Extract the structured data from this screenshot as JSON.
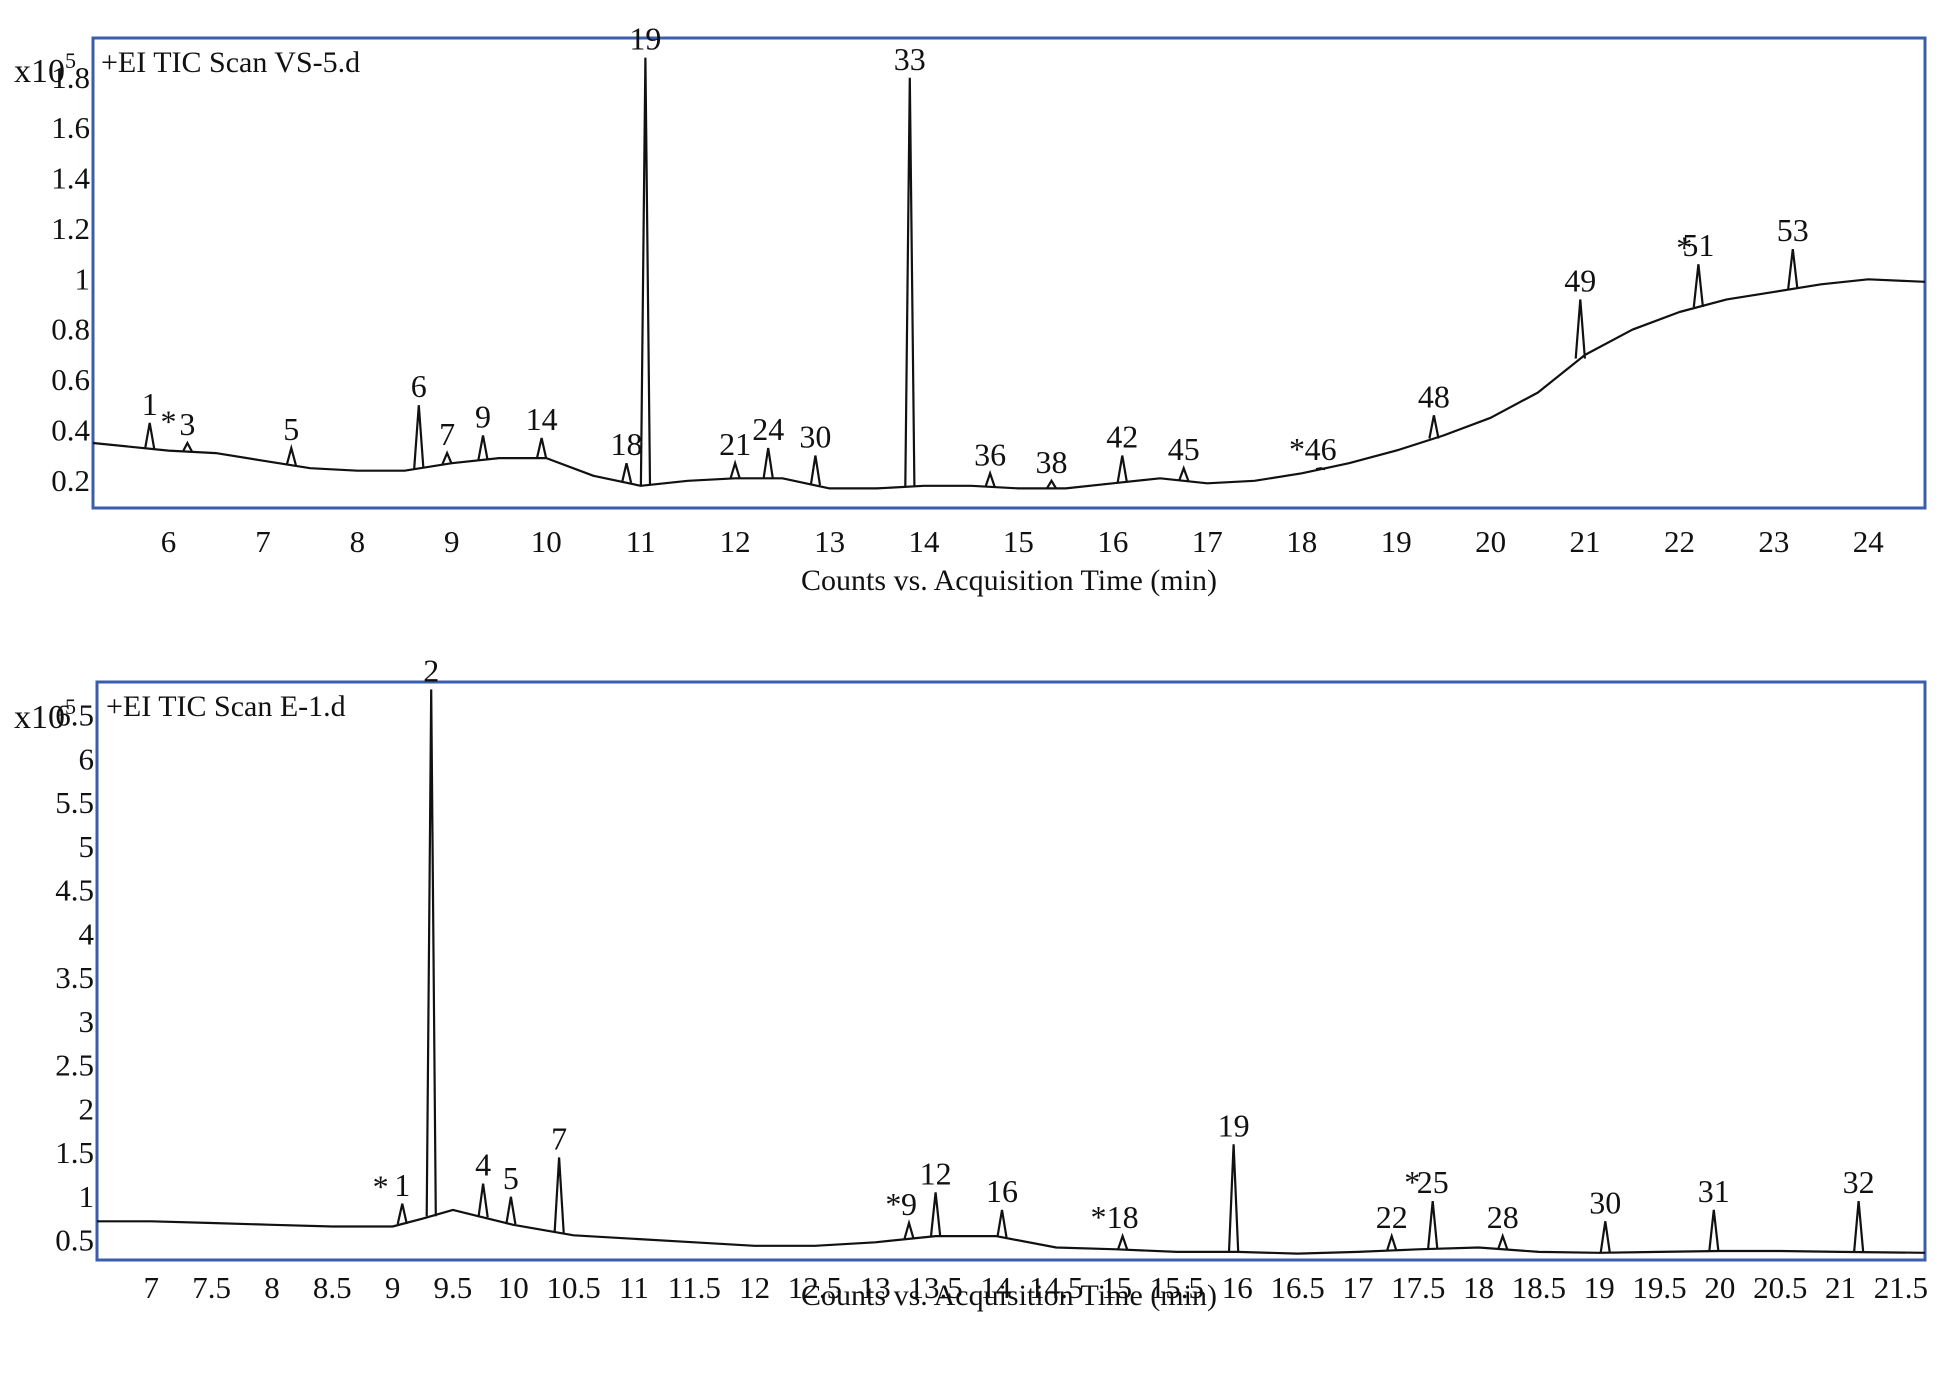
{
  "chart_data": [
    {
      "type": "line",
      "title": "+EI TIC Scan VS-5.d",
      "xlabel": "Counts vs. Acquisition Time (min)",
      "ylabel": "",
      "y_multiplier": "x10",
      "y_multiplier_exp": "5",
      "xlim": [
        5.2,
        24.6
      ],
      "ylim": [
        0.1,
        1.95
      ],
      "x_ticks": [
        6,
        7,
        8,
        9,
        10,
        11,
        12,
        13,
        14,
        15,
        16,
        17,
        18,
        19,
        20,
        21,
        22,
        23,
        24
      ],
      "y_ticks": [
        0.2,
        0.4,
        0.6,
        0.8,
        1,
        1.2,
        1.4,
        1.6,
        1.8
      ],
      "grid": false,
      "baseline": [
        [
          5.2,
          0.35
        ],
        [
          6,
          0.32
        ],
        [
          6.5,
          0.31
        ],
        [
          7,
          0.28
        ],
        [
          7.5,
          0.25
        ],
        [
          8,
          0.24
        ],
        [
          8.5,
          0.24
        ],
        [
          9,
          0.27
        ],
        [
          9.5,
          0.29
        ],
        [
          10,
          0.29
        ],
        [
          10.5,
          0.22
        ],
        [
          11,
          0.18
        ],
        [
          11.5,
          0.2
        ],
        [
          12,
          0.21
        ],
        [
          12.5,
          0.21
        ],
        [
          13,
          0.17
        ],
        [
          13.5,
          0.17
        ],
        [
          14,
          0.18
        ],
        [
          14.5,
          0.18
        ],
        [
          15,
          0.17
        ],
        [
          15.5,
          0.17
        ],
        [
          16,
          0.19
        ],
        [
          16.5,
          0.21
        ],
        [
          17,
          0.19
        ],
        [
          17.5,
          0.2
        ],
        [
          18,
          0.23
        ],
        [
          18.5,
          0.27
        ],
        [
          19,
          0.32
        ],
        [
          19.5,
          0.38
        ],
        [
          20,
          0.45
        ],
        [
          20.5,
          0.55
        ],
        [
          21,
          0.7
        ],
        [
          21.5,
          0.8
        ],
        [
          22,
          0.87
        ],
        [
          22.5,
          0.92
        ],
        [
          23,
          0.95
        ],
        [
          23.5,
          0.98
        ],
        [
          24,
          1.0
        ],
        [
          24.6,
          0.99
        ]
      ],
      "peaks": [
        {
          "label": "1",
          "x": 5.8,
          "y": 0.43
        },
        {
          "label": "*",
          "x": 6.0,
          "y": 0.36
        },
        {
          "label": "3",
          "x": 6.2,
          "y": 0.35
        },
        {
          "label": "5",
          "x": 7.3,
          "y": 0.33
        },
        {
          "label": "6",
          "x": 8.65,
          "y": 0.5
        },
        {
          "label": "7",
          "x": 8.95,
          "y": 0.31
        },
        {
          "label": "9",
          "x": 9.33,
          "y": 0.38
        },
        {
          "label": "14",
          "x": 9.95,
          "y": 0.37
        },
        {
          "label": "18",
          "x": 10.85,
          "y": 0.27
        },
        {
          "label": "19",
          "x": 11.05,
          "y": 1.88
        },
        {
          "label": "21",
          "x": 12.0,
          "y": 0.27
        },
        {
          "label": "24",
          "x": 12.35,
          "y": 0.33
        },
        {
          "label": "30",
          "x": 12.85,
          "y": 0.3
        },
        {
          "label": "33",
          "x": 13.85,
          "y": 1.8
        },
        {
          "label": "36",
          "x": 14.7,
          "y": 0.23
        },
        {
          "label": "38",
          "x": 15.35,
          "y": 0.2
        },
        {
          "label": "42",
          "x": 16.1,
          "y": 0.3
        },
        {
          "label": "45",
          "x": 16.75,
          "y": 0.25
        },
        {
          "label": "*",
          "x": 17.95,
          "y": 0.25
        },
        {
          "label": "46",
          "x": 18.2,
          "y": 0.25
        },
        {
          "label": "48",
          "x": 19.4,
          "y": 0.46
        },
        {
          "label": "49",
          "x": 20.95,
          "y": 0.92
        },
        {
          "label": "*",
          "x": 22.05,
          "y": 1.05
        },
        {
          "label": "51",
          "x": 22.2,
          "y": 1.06
        },
        {
          "label": "53",
          "x": 23.2,
          "y": 1.12
        }
      ]
    },
    {
      "type": "line",
      "title": "+EI TIC Scan E-1.d",
      "xlabel": "Counts vs. Acquisition Time (min)",
      "ylabel": "",
      "y_multiplier": "x10",
      "y_multiplier_exp": "5",
      "xlim": [
        6.55,
        21.7
      ],
      "ylim": [
        0.3,
        6.85
      ],
      "x_ticks": [
        "7",
        "7.5",
        "8",
        "8.5",
        "9",
        "9.5",
        "10",
        "10.5",
        "11",
        "11.5",
        "12",
        "12.5",
        "13",
        "13.5",
        "14",
        "14.5",
        "15",
        "15.5",
        "16",
        "16.5",
        "17",
        "17.5",
        "18",
        "18.5",
        "19",
        "19.5",
        "20",
        "20.5",
        "21",
        "21.5"
      ],
      "y_ticks": [
        "0.5",
        "1",
        "1.5",
        "2",
        "2.5",
        "3",
        "3.5",
        "4",
        "4.5",
        "5",
        "5.5",
        "6",
        "6.5"
      ],
      "grid": false,
      "baseline": [
        [
          6.55,
          0.72
        ],
        [
          7,
          0.72
        ],
        [
          7.5,
          0.7
        ],
        [
          8,
          0.68
        ],
        [
          8.5,
          0.66
        ],
        [
          9,
          0.66
        ],
        [
          9.25,
          0.75
        ],
        [
          9.5,
          0.85
        ],
        [
          10,
          0.68
        ],
        [
          10.5,
          0.56
        ],
        [
          11,
          0.52
        ],
        [
          11.5,
          0.48
        ],
        [
          12,
          0.44
        ],
        [
          12.5,
          0.44
        ],
        [
          13,
          0.48
        ],
        [
          13.5,
          0.55
        ],
        [
          14,
          0.55
        ],
        [
          14.5,
          0.42
        ],
        [
          15,
          0.4
        ],
        [
          15.5,
          0.37
        ],
        [
          16,
          0.37
        ],
        [
          16.5,
          0.35
        ],
        [
          17,
          0.37
        ],
        [
          17.5,
          0.4
        ],
        [
          18,
          0.42
        ],
        [
          18.5,
          0.37
        ],
        [
          19,
          0.36
        ],
        [
          19.5,
          0.37
        ],
        [
          20,
          0.38
        ],
        [
          20.5,
          0.38
        ],
        [
          21,
          0.37
        ],
        [
          21.7,
          0.36
        ]
      ],
      "peaks": [
        {
          "label": "*",
          "x": 8.9,
          "y": 0.9
        },
        {
          "label": "1",
          "x": 9.08,
          "y": 0.92
        },
        {
          "label": "2",
          "x": 9.32,
          "y": 6.8
        },
        {
          "label": "4",
          "x": 9.75,
          "y": 1.15
        },
        {
          "label": "5",
          "x": 9.98,
          "y": 1.0
        },
        {
          "label": "7",
          "x": 10.38,
          "y": 1.45
        },
        {
          "label": "*",
          "x": 13.15,
          "y": 0.7
        },
        {
          "label": "9",
          "x": 13.28,
          "y": 0.7
        },
        {
          "label": "12",
          "x": 13.5,
          "y": 1.05
        },
        {
          "label": "16",
          "x": 14.05,
          "y": 0.85
        },
        {
          "label": "*",
          "x": 14.85,
          "y": 0.55
        },
        {
          "label": "18",
          "x": 15.05,
          "y": 0.55
        },
        {
          "label": "19",
          "x": 15.97,
          "y": 1.6
        },
        {
          "label": "22",
          "x": 17.28,
          "y": 0.55
        },
        {
          "label": "*",
          "x": 17.45,
          "y": 0.95
        },
        {
          "label": "25",
          "x": 17.62,
          "y": 0.95
        },
        {
          "label": "28",
          "x": 18.2,
          "y": 0.55
        },
        {
          "label": "30",
          "x": 19.05,
          "y": 0.72
        },
        {
          "label": "31",
          "x": 19.95,
          "y": 0.85
        },
        {
          "label": "32",
          "x": 21.15,
          "y": 0.95
        }
      ]
    }
  ]
}
